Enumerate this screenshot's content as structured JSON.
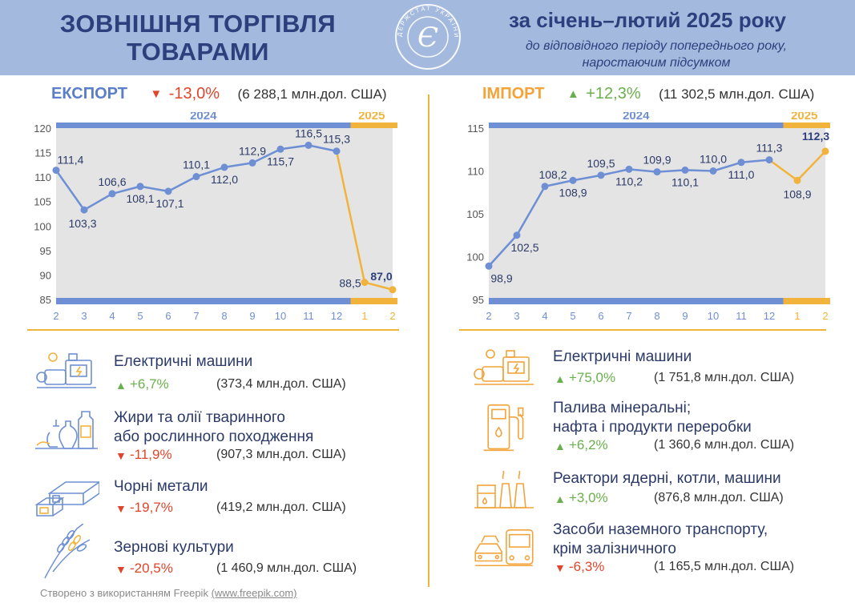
{
  "header": {
    "title_line1": "ЗОВНІШНЯ ТОРГІВЛЯ",
    "title_line2": "ТОВАРАМИ",
    "logo_text": "ДЕРЖСТАТ УКРАЇНИ",
    "period_title": "за січень–лютий 2025 року",
    "period_sub_line1": "до відповідного періоду попереднього року,",
    "period_sub_line2": "наростаючим підсумком"
  },
  "export": {
    "label": "ЕКСПОРТ",
    "trend_icon": "triangle-down",
    "change": "-13,0%",
    "total": "(6 288,1 млн.дол. США)"
  },
  "import": {
    "label": "ІМПОРТ",
    "trend_icon": "triangle-up",
    "change": "+12,3%",
    "total": "(11 302,5 млн.дол. США)"
  },
  "colors": {
    "year2024": "#6e8fd4",
    "year2025": "#f2b33d",
    "plot_bg": "#e4e4e4",
    "down": "#e0452c",
    "up": "#6ab04c",
    "title": "#2d3f7c"
  },
  "chart_data": [
    {
      "type": "line",
      "title": "ЕКСПОРТ",
      "year_labels": [
        "2024",
        "2025"
      ],
      "x": [
        "2",
        "3",
        "4",
        "5",
        "6",
        "7",
        "8",
        "9",
        "10",
        "11",
        "12",
        "1",
        "2"
      ],
      "series": [
        {
          "name": "2024",
          "values": [
            111.4,
            103.3,
            106.6,
            108.1,
            107.1,
            110.1,
            112.0,
            112.9,
            115.7,
            116.5,
            115.3,
            null,
            null
          ]
        },
        {
          "name": "2025",
          "values": [
            null,
            null,
            null,
            null,
            null,
            null,
            null,
            null,
            null,
            null,
            115.3,
            88.5,
            87.0
          ]
        }
      ],
      "value_labels": [
        "111,4",
        "103,3",
        "106,6",
        "108,1",
        "107,1",
        "110,1",
        "112,0",
        "112,9",
        "115,7",
        "116,5",
        "115,3",
        "88,5",
        "87,0"
      ],
      "ylim": [
        85,
        120
      ],
      "yticks": [
        "85",
        "90",
        "95",
        "100",
        "105",
        "110",
        "115",
        "120"
      ],
      "grid": false
    },
    {
      "type": "line",
      "title": "ІМПОРТ",
      "year_labels": [
        "2024",
        "2025"
      ],
      "x": [
        "2",
        "3",
        "4",
        "5",
        "6",
        "7",
        "8",
        "9",
        "10",
        "11",
        "12",
        "1",
        "2"
      ],
      "series": [
        {
          "name": "2024",
          "values": [
            98.9,
            102.5,
            108.2,
            108.9,
            109.5,
            110.2,
            109.9,
            110.1,
            110.0,
            111.0,
            111.3,
            null,
            null
          ]
        },
        {
          "name": "2025",
          "values": [
            null,
            null,
            null,
            null,
            null,
            null,
            null,
            null,
            null,
            null,
            111.3,
            108.9,
            112.3
          ]
        }
      ],
      "value_labels": [
        "98,9",
        "102,5",
        "108,2",
        "108,9",
        "109,5",
        "110,2",
        "109,9",
        "110,1",
        "110,0",
        "111,0",
        "111,3",
        "108,9",
        "112,3"
      ],
      "ylim": [
        95,
        115
      ],
      "yticks": [
        "95",
        "100",
        "105",
        "110",
        "115"
      ],
      "grid": false
    }
  ],
  "export_items": [
    {
      "icon": "electric-machine-icon",
      "name_lines": [
        "Електричні машини"
      ],
      "trend_icon": "triangle-up",
      "change": "+6,7%",
      "value": "(373,4 млн.дол. США)"
    },
    {
      "icon": "oil-bottles-icon",
      "name_lines": [
        "Жири та олії тваринного",
        "або рослинного походження"
      ],
      "trend_icon": "triangle-down",
      "change": "-11,9%",
      "value": "(907,3 млн.дол. США)"
    },
    {
      "icon": "metal-beams-icon",
      "name_lines": [
        "Чорні метали"
      ],
      "trend_icon": "triangle-down",
      "change": "-19,7%",
      "value": "(419,2 млн.дол. США)"
    },
    {
      "icon": "wheat-icon",
      "name_lines": [
        "Зернові культури"
      ],
      "trend_icon": "triangle-down",
      "change": "-20,5%",
      "value": "(1 460,9 млн.дол. США)"
    }
  ],
  "import_items": [
    {
      "icon": "electric-machine-icon",
      "name_lines": [
        "Електричні машини"
      ],
      "trend_icon": "triangle-up",
      "change": "+75,0%",
      "value": "(1 751,8 млн.дол. США)"
    },
    {
      "icon": "fuel-pump-icon",
      "name_lines": [
        "Палива мінеральні;",
        "нафта і продукти переробки"
      ],
      "trend_icon": "triangle-up",
      "change": "+6,2%",
      "value": "(1 360,6 млн.дол. США)"
    },
    {
      "icon": "power-plant-icon",
      "name_lines": [
        "Реактори ядерні, котли, машини"
      ],
      "trend_icon": "triangle-up",
      "change": "+3,0%",
      "value": "(876,8 млн.дол. США)"
    },
    {
      "icon": "car-bus-icon",
      "name_lines": [
        "Засоби наземного транспорту,",
        "крім залізничного"
      ],
      "trend_icon": "triangle-down",
      "change": "-6,3%",
      "value": "(1 165,5 млн.дол. США)"
    }
  ],
  "footer": {
    "text": "Створено з використанням Freepik",
    "link": "(www.freepik.com)"
  }
}
